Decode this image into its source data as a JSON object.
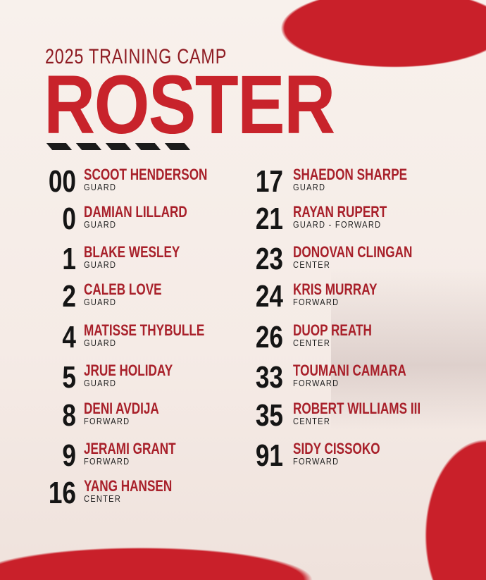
{
  "header": {
    "subtitle": "2025 TRAINING CAMP",
    "title": "ROSTER"
  },
  "colors": {
    "accent": "#c8232b",
    "name": "#a8202a",
    "number": "#151515",
    "background": "#f7efe9"
  },
  "roster_left": [
    {
      "number": "00",
      "name": "SCOOT HENDERSON",
      "position": "GUARD"
    },
    {
      "number": "0",
      "name": "DAMIAN LILLARD",
      "position": "GUARD"
    },
    {
      "number": "1",
      "name": "BLAKE WESLEY",
      "position": "GUARD"
    },
    {
      "number": "2",
      "name": "CALEB LOVE",
      "position": "GUARD"
    },
    {
      "number": "4",
      "name": "MATISSE THYBULLE",
      "position": "GUARD"
    },
    {
      "number": "5",
      "name": "JRUE HOLIDAY",
      "position": "GUARD"
    },
    {
      "number": "8",
      "name": "DENI AVDIJA",
      "position": "FORWARD"
    },
    {
      "number": "9",
      "name": "JERAMI GRANT",
      "position": "FORWARD"
    },
    {
      "number": "16",
      "name": "YANG HANSEN",
      "position": "CENTER"
    }
  ],
  "roster_right": [
    {
      "number": "17",
      "name": "SHAEDON SHARPE",
      "position": "GUARD"
    },
    {
      "number": "21",
      "name": "RAYAN RUPERT",
      "position": "GUARD - FORWARD"
    },
    {
      "number": "23",
      "name": "DONOVAN CLINGAN",
      "position": "CENTER"
    },
    {
      "number": "24",
      "name": "KRIS MURRAY",
      "position": "FORWARD"
    },
    {
      "number": "26",
      "name": "DUOP REATH",
      "position": "CENTER"
    },
    {
      "number": "33",
      "name": "TOUMANI CAMARA",
      "position": "FORWARD"
    },
    {
      "number": "35",
      "name": "ROBERT WILLIAMS III",
      "position": "CENTER"
    },
    {
      "number": "91",
      "name": "SIDY CISSOKO",
      "position": "FORWARD"
    }
  ]
}
